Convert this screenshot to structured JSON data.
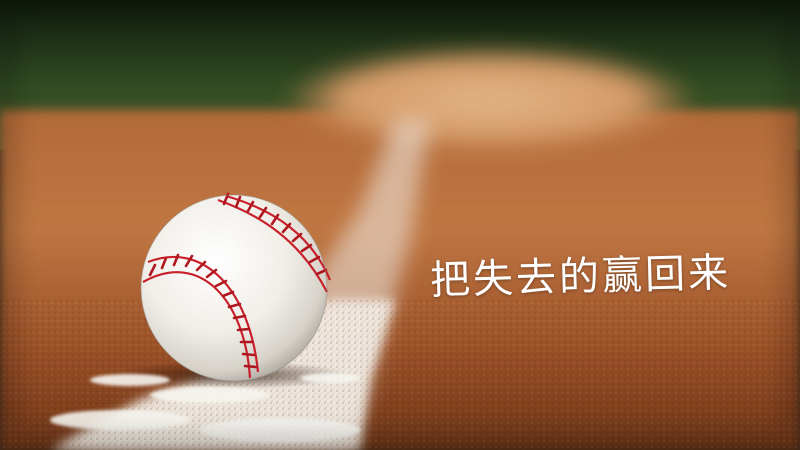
{
  "photo": {
    "subject": "baseball",
    "caption": "把失去的赢回来"
  },
  "colors": {
    "grass_dark": "#1c2a14",
    "grass_light": "#3d5a2a",
    "dirt_dark": "#7a3e1a",
    "dirt_light": "#c2753f",
    "mound": "#d9a577",
    "chalk_line": "#f1efe9",
    "ball_white": "#f5f3ee",
    "stitch_red": "#c8202a",
    "caption_text": "#ffffff"
  }
}
